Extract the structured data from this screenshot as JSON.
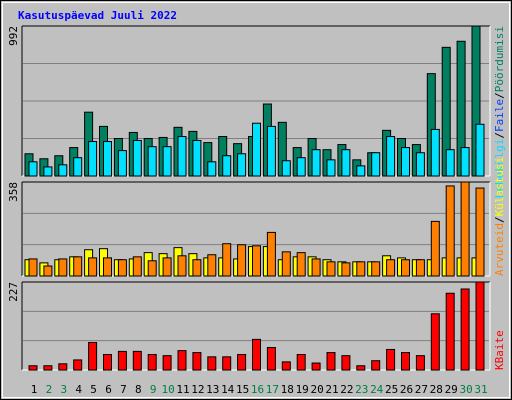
{
  "title": "Kasutuspäevad Juuli 2022",
  "legend_separator": "/",
  "categories": [
    "1",
    "2",
    "3",
    "4",
    "5",
    "6",
    "7",
    "8",
    "9",
    "10",
    "11",
    "12",
    "13",
    "14",
    "15",
    "16",
    "17",
    "18",
    "19",
    "20",
    "21",
    "22",
    "23",
    "24",
    "25",
    "26",
    "27",
    "28",
    "29",
    "30",
    "31"
  ],
  "category_colors": [
    "#000000",
    "#008040",
    "#008040",
    "#000000",
    "#000000",
    "#000000",
    "#000000",
    "#000000",
    "#008040",
    "#008040",
    "#000000",
    "#000000",
    "#000000",
    "#000000",
    "#000000",
    "#008040",
    "#008040",
    "#000000",
    "#000000",
    "#000000",
    "#000000",
    "#000000",
    "#008040",
    "#008040",
    "#000000",
    "#000000",
    "#000000",
    "#000000",
    "#000000",
    "#008040",
    "#008040"
  ],
  "chart_data": [
    {
      "type": "bar",
      "ylim": [
        0,
        992
      ],
      "yticks": [
        992
      ],
      "extra_legend": {
        "text": "Faile",
        "color": "#0040ff"
      },
      "series": [
        {
          "name": "Pöördumisi",
          "color": "#008060",
          "values": [
            147,
            114,
            134,
            188,
            422,
            328,
            248,
            288,
            248,
            255,
            322,
            295,
            221,
            261,
            214,
            261,
            476,
            355,
            188,
            248,
            174,
            208,
            107,
            154,
            302,
            248,
            208,
            677,
            851,
            891,
            992
          ]
        },
        {
          "name": "Lehekülgi",
          "color": "#00e0ff",
          "values": [
            94,
            60,
            74,
            121,
            228,
            228,
            168,
            235,
            194,
            194,
            261,
            235,
            94,
            134,
            147,
            349,
            328,
            101,
            121,
            174,
            107,
            174,
            67,
            154,
            261,
            188,
            154,
            308,
            174,
            188,
            342
          ]
        }
      ]
    },
    {
      "type": "bar",
      "ylim": [
        0,
        358
      ],
      "yticks": [
        358
      ],
      "series": [
        {
          "name": "Külastusi",
          "color": "#ffff00",
          "values": [
            62,
            50,
            62,
            73,
            100,
            104,
            62,
            65,
            89,
            85,
            108,
            85,
            69,
            69,
            65,
            112,
            112,
            62,
            73,
            73,
            62,
            54,
            54,
            54,
            77,
            69,
            62,
            62,
            69,
            69,
            69
          ]
        },
        {
          "name": "Arvuteid",
          "color": "#ff8000",
          "values": [
            65,
            38,
            65,
            73,
            69,
            69,
            62,
            73,
            58,
            69,
            77,
            62,
            81,
            123,
            119,
            115,
            166,
            92,
            89,
            65,
            54,
            50,
            54,
            54,
            62,
            62,
            62,
            208,
            343,
            358,
            335
          ]
        }
      ]
    },
    {
      "type": "bar",
      "ylim": [
        0,
        227
      ],
      "yticks": [
        227
      ],
      "series": [
        {
          "name": "KBaite",
          "color": "#ff0000",
          "values": [
            11,
            11,
            16,
            26,
            71,
            40,
            48,
            48,
            40,
            37,
            50,
            45,
            34,
            34,
            40,
            79,
            58,
            21,
            40,
            18,
            45,
            37,
            11,
            24,
            53,
            45,
            37,
            145,
            198,
            209,
            227
          ]
        }
      ]
    }
  ]
}
